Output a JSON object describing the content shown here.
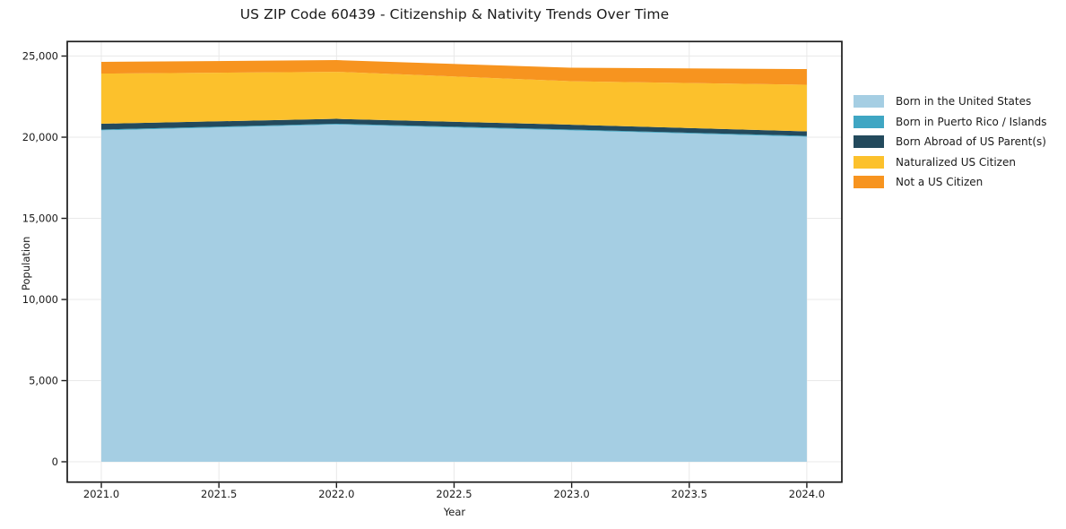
{
  "chart_data": {
    "type": "area",
    "stacked": true,
    "title": "US ZIP Code 60439 - Citizenship & Nativity Trends Over Time",
    "xlabel": "Year",
    "ylabel": "Population",
    "x": [
      2021,
      2022,
      2023,
      2024
    ],
    "series": [
      {
        "name": "Born in the United States",
        "color": "#a5cee3",
        "values": [
          20420,
          20780,
          20420,
          20030
        ]
      },
      {
        "name": "Born in Puerto Rico / Islands",
        "color": "#3fa6c3",
        "values": [
          50,
          50,
          50,
          50
        ]
      },
      {
        "name": "Born Abroad of US Parent(s)",
        "color": "#234a5d",
        "values": [
          360,
          300,
          300,
          280
        ]
      },
      {
        "name": "Naturalized US Citizen",
        "color": "#fcc12c",
        "values": [
          3090,
          2900,
          2680,
          2870
        ]
      },
      {
        "name": "Not a US Citizen",
        "color": "#f7941f",
        "values": [
          720,
          720,
          830,
          970
        ]
      }
    ],
    "totals": [
      24640,
      24750,
      24280,
      24200
    ],
    "xlim": [
      2020.855,
      2024.149
    ],
    "ylim": [
      -1254,
      25896
    ],
    "xticks": [
      2021.0,
      2021.5,
      2022.0,
      2022.5,
      2023.0,
      2023.5,
      2024.0
    ],
    "xtick_labels": [
      "2021.0",
      "2021.5",
      "2022.0",
      "2022.5",
      "2023.0",
      "2023.5",
      "2024.0"
    ],
    "yticks": [
      0,
      5000,
      10000,
      15000,
      20000,
      25000
    ],
    "ytick_labels": [
      "0",
      "5,000",
      "10,000",
      "15,000",
      "20,000",
      "25,000"
    ],
    "grid": true,
    "legend_position": "right",
    "background": "#ffffff",
    "grid_color": "#e9e9e9",
    "axis_color": "#1a1a1a"
  }
}
